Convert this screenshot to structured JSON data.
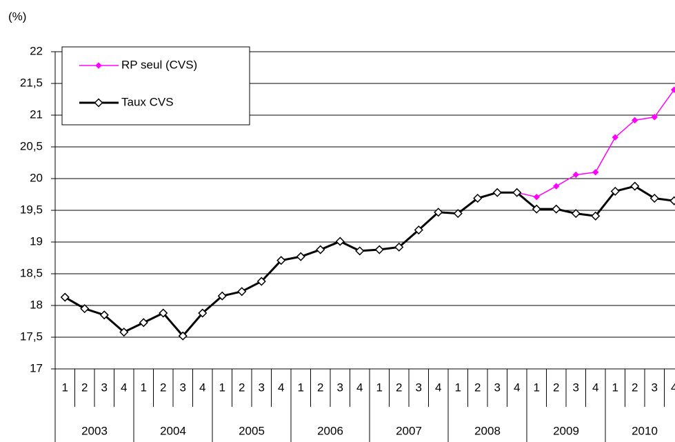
{
  "chart_data": {
    "type": "line",
    "y_label": "(%)",
    "categories": [
      "1",
      "2",
      "3",
      "4",
      "1",
      "2",
      "3",
      "4",
      "1",
      "2",
      "3",
      "4",
      "1",
      "2",
      "3",
      "4",
      "1",
      "2",
      "3",
      "4",
      "1",
      "2",
      "3",
      "4",
      "1",
      "2",
      "3",
      "4",
      "1",
      "2",
      "3",
      "4"
    ],
    "groups": [
      "2003",
      "2004",
      "2005",
      "2006",
      "2007",
      "2008",
      "2009",
      "2010"
    ],
    "series": [
      {
        "name": "RP seul (CVS)",
        "color": "#ff00ff",
        "values": [
          null,
          null,
          null,
          null,
          null,
          null,
          null,
          null,
          null,
          null,
          null,
          null,
          null,
          null,
          null,
          null,
          null,
          null,
          null,
          null,
          null,
          null,
          null,
          19.78,
          19.71,
          19.88,
          20.06,
          20.1,
          20.65,
          20.92,
          20.97,
          21.4
        ]
      },
      {
        "name": "Taux CVS",
        "color": "#000000",
        "values": [
          18.13,
          17.95,
          17.85,
          17.58,
          17.73,
          17.88,
          17.52,
          17.88,
          18.15,
          18.22,
          18.38,
          18.71,
          18.77,
          18.88,
          19.01,
          18.86,
          18.88,
          18.92,
          19.19,
          19.47,
          19.45,
          19.69,
          19.78,
          19.78,
          19.52,
          19.52,
          19.45,
          19.41,
          19.8,
          19.88,
          19.69,
          19.65
        ]
      }
    ],
    "ylim": [
      17,
      22
    ],
    "yticks": [
      17,
      {
        "value": 17.5,
        "label": "17,5"
      },
      18,
      {
        "value": 18.5,
        "label": "18,5"
      },
      19,
      {
        "value": 19.5,
        "label": "19,5"
      },
      20,
      {
        "value": 20.5,
        "label": "20,5"
      },
      21,
      {
        "value": 21.5,
        "label": "21,5"
      },
      22
    ],
    "grid": true,
    "legend_position": "top-left"
  }
}
